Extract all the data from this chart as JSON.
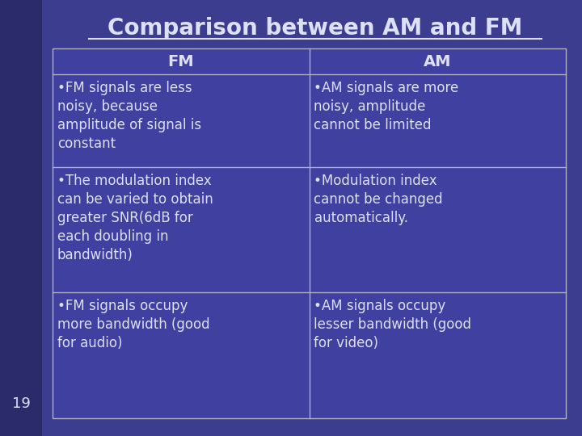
{
  "title": "Comparison between AM and FM",
  "background_color": "#3d3d8f",
  "bg_left_color": "#2b2b6b",
  "table_border_color": "#b0b0cc",
  "text_color": "#dde0f8",
  "header_row": [
    "FM",
    "AM"
  ],
  "rows": [
    [
      "•FM signals are less\nnoisy, because\namplitude of signal is\nconstant",
      "•AM signals are more\nnoisy, amplitude\ncannot be limited"
    ],
    [
      "•The modulation index\ncan be varied to obtain\ngreater SNR(6dB for\neach doubling in\nbandwidth)",
      "•Modulation index\ncannot be changed\nautomatically."
    ],
    [
      "•FM signals occupy\nmore bandwidth (good\nfor audio)",
      "•AM signals occupy\nlesser bandwidth (good\nfor video)"
    ]
  ],
  "slide_number": "19",
  "title_fontsize": 20,
  "header_fontsize": 14,
  "cell_fontsize": 12,
  "slide_num_fontsize": 13
}
